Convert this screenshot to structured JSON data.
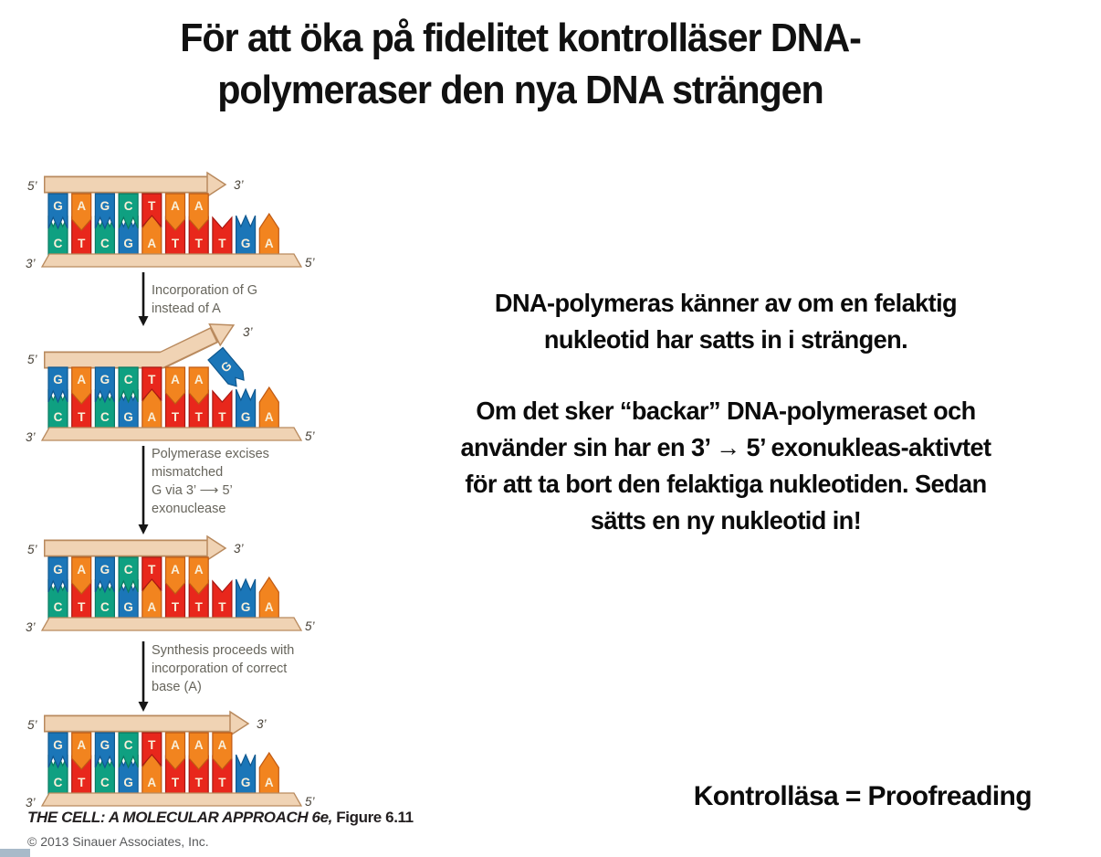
{
  "header": {
    "line1": "För att öka på fidelitet kontrolläser DNA-",
    "line2": "polymeraser den nya DNA strängen"
  },
  "body": {
    "intro": {
      "lines": [
        "DNA-polymeras känner av om en felaktig",
        "nukleotid har satts in i strängen."
      ]
    },
    "detail": {
      "lines": [
        "Om det sker “backar” DNA-polymeraset och",
        "använder sin har en 3’ → 5’ exonukleas-aktivtet",
        "för att ta bort den felaktiga nukleotiden. Sedan",
        "sätts en ny nukleotid in!"
      ]
    }
  },
  "note": {
    "text": "Kontrolläsa = Proofreading"
  },
  "attribution": {
    "book": "THE CELL: A MOLECULAR APPROACH 6e,",
    "figure_ref": " Figure 6.11",
    "copyright": "© 2013 Sinauer Associates, Inc."
  },
  "figure": {
    "colors": {
      "G": "#1b76b8",
      "C": "#0fa081",
      "A": "#f2841f",
      "T": "#e8271c",
      "backbone": "#f0d3b4",
      "backbone_border": "#b98a5e",
      "letter": "#f8efd9",
      "step_label": "#67655c",
      "arrow_black": "#161616"
    },
    "border_colors": {
      "G": "#10588f",
      "C": "#0a7a61",
      "A": "#c05a14",
      "T": "#a81812"
    },
    "labels": {
      "five": "5’",
      "three": "3’"
    },
    "panels": [
      {
        "name": "initial-strand",
        "top": "GAGCTAA",
        "bottom": "CTCGATTTGA",
        "arrow": "straight",
        "tip": 227
      },
      {
        "name": "mismatch-added",
        "top": "GAGCTAA",
        "bottom": "CTCGATTTGA",
        "arrow": "bent",
        "mismatch": "G"
      },
      {
        "name": "mismatch-excised",
        "top": "GAGCTAA",
        "bottom": "CTCGATTTGA",
        "arrow": "straight",
        "tip": 227
      },
      {
        "name": "corrected-strand",
        "top": "GAGCTAAA",
        "bottom": "CTCGATTTGA",
        "arrow": "straight",
        "tip": 252
      }
    ],
    "steps": [
      {
        "lines": [
          "Incorporation of G",
          "instead of A"
        ]
      },
      {
        "lines": [
          "Polymerase excises",
          "mismatched",
          "G via 3’ ⟶ 5’",
          "exonuclease"
        ]
      },
      {
        "lines": [
          "Synthesis proceeds with",
          "incorporation of correct",
          "base (A)"
        ]
      }
    ]
  }
}
